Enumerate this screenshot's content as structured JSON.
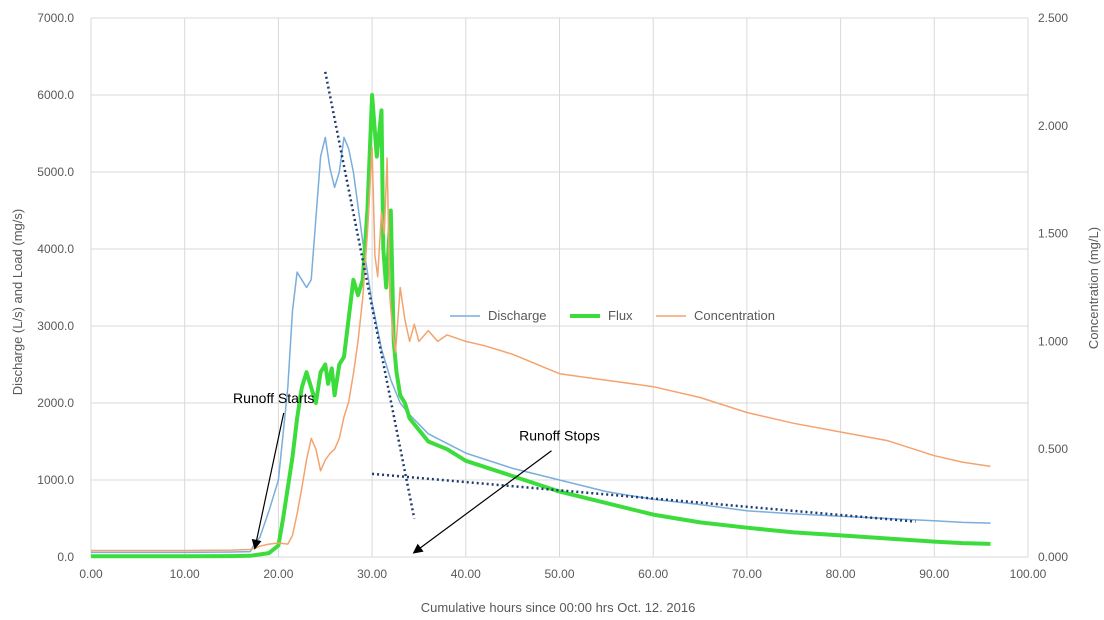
{
  "chart_data": {
    "type": "line",
    "title": "",
    "xlabel": "Cumulative hours since 00:00 hrs Oct. 12. 2016",
    "ylabel_left": "Discharge (L/s) and Load (mg/s)",
    "ylabel_right": "Concentration (mg/L)",
    "xlim": [
      0,
      100
    ],
    "ylim_left": [
      0,
      7000
    ],
    "ylim_right": [
      0,
      2.5
    ],
    "x_ticks": [
      "0.00",
      "10.00",
      "20.00",
      "30.00",
      "40.00",
      "50.00",
      "60.00",
      "70.00",
      "80.00",
      "90.00",
      "100.00"
    ],
    "y_left_ticks": [
      "0.0",
      "1000.0",
      "2000.0",
      "3000.0",
      "4000.0",
      "5000.0",
      "6000.0",
      "7000.0"
    ],
    "y_right_ticks": [
      "0.000",
      "0.500",
      "1.000",
      "1.500",
      "2.000",
      "2.500"
    ],
    "grid": true,
    "legend_position": "center-right",
    "series": [
      {
        "name": "Discharge",
        "axis": "left",
        "color": "#7aaedc",
        "x": [
          0,
          5,
          10,
          15,
          17,
          17.5,
          18,
          19,
          20,
          21,
          21.5,
          22,
          22.5,
          23,
          23.5,
          24,
          24.5,
          25,
          25.5,
          26,
          26.5,
          27,
          27.5,
          28,
          29,
          30,
          31,
          32,
          33,
          34,
          36,
          40,
          45,
          50,
          55,
          60,
          65,
          70,
          75,
          80,
          85,
          90,
          93,
          96
        ],
        "y": [
          60,
          60,
          60,
          65,
          70,
          180,
          250,
          600,
          1000,
          2200,
          3200,
          3700,
          3600,
          3500,
          3600,
          4400,
          5200,
          5450,
          5050,
          4800,
          5000,
          5450,
          5300,
          5000,
          4100,
          3300,
          2700,
          2300,
          2000,
          1850,
          1600,
          1350,
          1150,
          1000,
          850,
          750,
          680,
          600,
          560,
          530,
          500,
          470,
          450,
          440
        ]
      },
      {
        "name": "Flux",
        "axis": "left",
        "color": "#3ddc3d",
        "x": [
          0,
          5,
          10,
          15,
          17,
          19,
          20,
          20.5,
          21,
          21.5,
          22,
          22.5,
          23,
          23.5,
          24,
          24.5,
          25,
          25.3,
          25.7,
          26,
          26.5,
          27,
          27.5,
          28,
          28.5,
          29,
          29.5,
          30,
          30.5,
          31,
          31.2,
          31.5,
          32,
          32.3,
          32.6,
          33,
          33.5,
          34,
          35,
          36,
          38,
          40,
          45,
          50,
          55,
          60,
          65,
          70,
          75,
          80,
          85,
          90,
          93,
          96
        ],
        "y": [
          10,
          10,
          10,
          12,
          15,
          50,
          150,
          500,
          900,
          1300,
          1800,
          2200,
          2400,
          2200,
          2000,
          2400,
          2500,
          2250,
          2450,
          2100,
          2500,
          2600,
          3100,
          3600,
          3400,
          3600,
          4500,
          6000,
          5200,
          5800,
          4000,
          3500,
          4500,
          2800,
          2400,
          2100,
          2000,
          1800,
          1650,
          1500,
          1400,
          1250,
          1050,
          850,
          700,
          550,
          450,
          380,
          320,
          280,
          240,
          200,
          180,
          170
        ]
      },
      {
        "name": "Concentration",
        "axis": "right",
        "color": "#f4a36e",
        "x": [
          0,
          5,
          10,
          15,
          17,
          17.5,
          18,
          19,
          20,
          21,
          21.5,
          22,
          22.5,
          23,
          23.5,
          24,
          24.5,
          25,
          25.5,
          26,
          26.5,
          27,
          27.5,
          28,
          28.5,
          29,
          29.5,
          30,
          30.3,
          30.6,
          31,
          31.3,
          31.6,
          31.9,
          32.2,
          32.5,
          33,
          33.5,
          34,
          34.5,
          35,
          36,
          37,
          38,
          40,
          42,
          45,
          50,
          55,
          60,
          65,
          70,
          75,
          80,
          85,
          90,
          93,
          96
        ],
        "y": [
          0.03,
          0.03,
          0.03,
          0.032,
          0.035,
          0.04,
          0.05,
          0.06,
          0.065,
          0.06,
          0.1,
          0.2,
          0.32,
          0.45,
          0.55,
          0.5,
          0.4,
          0.45,
          0.48,
          0.5,
          0.55,
          0.65,
          0.72,
          0.85,
          1.0,
          1.2,
          1.5,
          1.9,
          1.4,
          1.3,
          1.6,
          1.5,
          1.85,
          1.2,
          1.05,
          0.95,
          1.25,
          1.1,
          1.0,
          1.08,
          1.0,
          1.05,
          1.0,
          1.03,
          1.0,
          0.98,
          0.94,
          0.85,
          0.82,
          0.79,
          0.74,
          0.67,
          0.62,
          0.58,
          0.54,
          0.47,
          0.44,
          0.42
        ]
      }
    ],
    "trendlines": [
      {
        "color": "#1f3b6e",
        "x": [
          25,
          34.5
        ],
        "y": [
          6300,
          500
        ]
      },
      {
        "color": "#1f3b6e",
        "x": [
          30,
          88
        ],
        "y": [
          1080,
          460
        ]
      }
    ],
    "annotations": [
      {
        "text": "Runoff Starts",
        "x": 19.5,
        "y": 2000,
        "arrow_to": [
          17.5,
          120
        ]
      },
      {
        "text": "Runoff Stops",
        "x": 50,
        "y": 1510,
        "arrow_to": [
          34.5,
          60
        ]
      }
    ]
  }
}
